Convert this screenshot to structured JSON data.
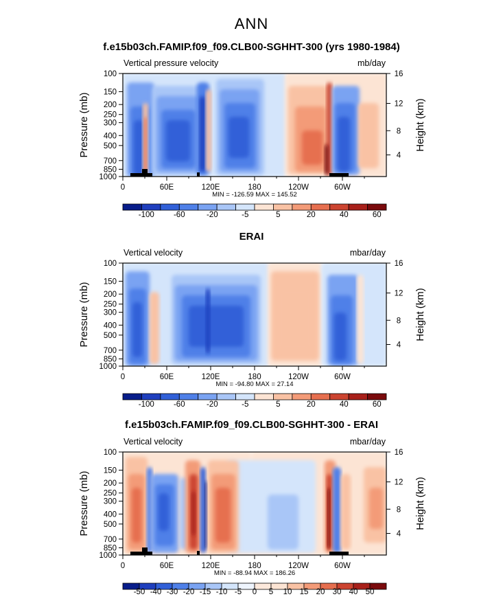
{
  "figure": {
    "title": "ANN"
  },
  "chart_data": [
    {
      "type": "heatmap",
      "title": "f.e15b03ch.FAMIP.f09_f09.CLB00-SGHHT-300 (yrs 1980-1984)",
      "subtitle_left": "Vertical pressure velocity",
      "subtitle_right": "mb/day",
      "ylabel": "Pressure (mb)",
      "ylabel_right": "Height (km)",
      "x_tick_labels": [
        "0",
        "60E",
        "120E",
        "180",
        "120W",
        "60W"
      ],
      "y_tick_labels": [
        "100",
        "150",
        "200",
        "250",
        "300",
        "400",
        "500",
        "700",
        "850",
        "1000"
      ],
      "y_right_tick_labels": [
        "16",
        "12",
        "8",
        "4"
      ],
      "stats": "MIN = -126.59   MAX = 145.52",
      "colorbar": {
        "labels": [
          "-100",
          "-60",
          "-20",
          "-5",
          "5",
          "20",
          "40",
          "60"
        ],
        "colors": [
          "#081d8a",
          "#1f3fbe",
          "#3160d8",
          "#4f80e8",
          "#7aa3f2",
          "#a9c6f7",
          "#d4e5fb",
          "#fce4d4",
          "#f9c2a4",
          "#f39b78",
          "#e66f4f",
          "#cc4430",
          "#a8201a",
          "#7a0a0c"
        ]
      }
    },
    {
      "type": "heatmap",
      "title": "ERAI",
      "subtitle_left": "Vertical velocity",
      "subtitle_right": "mbar/day",
      "ylabel": "Pressure (mb)",
      "ylabel_right": "Height (km)",
      "x_tick_labels": [
        "0",
        "60E",
        "120E",
        "180",
        "120W",
        "60W"
      ],
      "y_tick_labels": [
        "100",
        "150",
        "200",
        "250",
        "300",
        "400",
        "500",
        "700",
        "850",
        "1000"
      ],
      "y_right_tick_labels": [
        "16",
        "12",
        "8",
        "4"
      ],
      "stats": "MIN = -94.80   MAX = 27.14",
      "colorbar": {
        "labels": [
          "-100",
          "-60",
          "-20",
          "-5",
          "5",
          "20",
          "40",
          "60"
        ],
        "colors": [
          "#081d8a",
          "#1f3fbe",
          "#3160d8",
          "#4f80e8",
          "#7aa3f2",
          "#a9c6f7",
          "#d4e5fb",
          "#fce4d4",
          "#f9c2a4",
          "#f39b78",
          "#e66f4f",
          "#cc4430",
          "#a8201a",
          "#7a0a0c"
        ]
      }
    },
    {
      "type": "heatmap",
      "title": "f.e15b03ch.FAMIP.f09_f09.CLB00-SGHHT-300 - ERAI",
      "subtitle_left": "Vertical velocity",
      "subtitle_right": "mbar/day",
      "ylabel": "Pressure (mb)",
      "ylabel_right": "Height (km)",
      "x_tick_labels": [
        "0",
        "60E",
        "120E",
        "180",
        "120W",
        "60W"
      ],
      "y_tick_labels": [
        "100",
        "150",
        "200",
        "250",
        "300",
        "400",
        "500",
        "700",
        "850",
        "1000"
      ],
      "y_right_tick_labels": [
        "16",
        "12",
        "8",
        "4"
      ],
      "stats": "MIN = -88.94   MAX = 186.26",
      "colorbar": {
        "labels": [
          "-50",
          "-40",
          "-30",
          "-20",
          "-15",
          "-10",
          "-5",
          "0",
          "5",
          "10",
          "15",
          "20",
          "30",
          "40",
          "50"
        ],
        "colors": [
          "#081d8a",
          "#1f3fbe",
          "#3160d8",
          "#4f80e8",
          "#7aa3f2",
          "#a9c6f7",
          "#d4e5fb",
          "#eef4fd",
          "#fde9dc",
          "#fce4d4",
          "#f9c2a4",
          "#f39b78",
          "#e66f4f",
          "#cc4430",
          "#a8201a",
          "#7a0a0c"
        ]
      }
    }
  ]
}
